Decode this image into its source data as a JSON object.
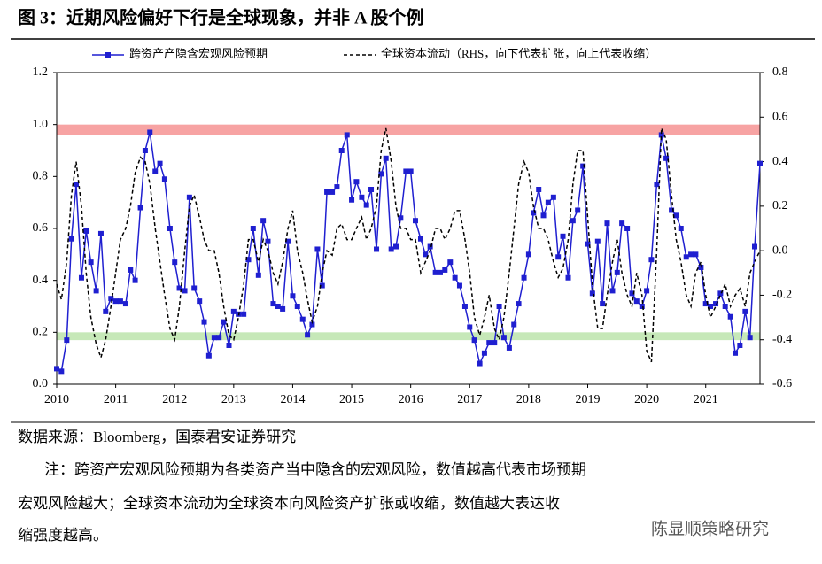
{
  "chart_data": {
    "type": "line",
    "title": "图 3：近期风险偏好下行是全球现象，并非 A 股个例",
    "source": "数据来源：Bloomberg，国泰君安证券研究",
    "notes": [
      "注：跨资产宏观风险预期为各类资产当中隐含的宏观风险，数值越高代表市场预期",
      "宏观风险越大；全球资本流动为全球资本向风险资产扩张或收缩，数值越大表达收",
      "缩强度越高。"
    ],
    "watermark": "陈显顺策略研究",
    "x": [
      2010,
      2010.08,
      2010.17,
      2010.25,
      2010.33,
      2010.42,
      2010.5,
      2010.58,
      2010.67,
      2010.75,
      2010.83,
      2010.92,
      2011,
      2011.08,
      2011.17,
      2011.25,
      2011.33,
      2011.42,
      2011.5,
      2011.58,
      2011.67,
      2011.75,
      2011.83,
      2011.92,
      2012,
      2012.08,
      2012.17,
      2012.25,
      2012.33,
      2012.42,
      2012.5,
      2012.58,
      2012.67,
      2012.75,
      2012.83,
      2012.92,
      2013,
      2013.08,
      2013.17,
      2013.25,
      2013.33,
      2013.42,
      2013.5,
      2013.58,
      2013.67,
      2013.75,
      2013.83,
      2013.92,
      2014,
      2014.08,
      2014.17,
      2014.25,
      2014.33,
      2014.42,
      2014.5,
      2014.58,
      2014.67,
      2014.75,
      2014.83,
      2014.92,
      2015,
      2015.08,
      2015.17,
      2015.25,
      2015.33,
      2015.42,
      2015.5,
      2015.58,
      2015.67,
      2015.75,
      2015.83,
      2015.92,
      2016,
      2016.08,
      2016.17,
      2016.25,
      2016.33,
      2016.42,
      2016.5,
      2016.58,
      2016.67,
      2016.75,
      2016.83,
      2016.92,
      2017,
      2017.08,
      2017.17,
      2017.25,
      2017.33,
      2017.42,
      2017.5,
      2017.58,
      2017.67,
      2017.75,
      2017.83,
      2017.92,
      2018,
      2018.08,
      2018.17,
      2018.25,
      2018.33,
      2018.42,
      2018.5,
      2018.58,
      2018.67,
      2018.75,
      2018.83,
      2018.92,
      2019,
      2019.08,
      2019.17,
      2019.25,
      2019.33,
      2019.42,
      2019.5,
      2019.58,
      2019.67,
      2019.75,
      2019.83,
      2019.92,
      2020,
      2020.08,
      2020.17,
      2020.25,
      2020.33,
      2020.42,
      2020.5,
      2020.58,
      2020.67,
      2020.75,
      2020.83,
      2020.92,
      2021,
      2021.08,
      2021.17,
      2021.25,
      2021.33,
      2021.42,
      2021.5,
      2021.58,
      2021.67,
      2021.75,
      2021.83,
      2021.92
    ],
    "series": [
      {
        "name": "跨资产产隐含宏观风险预期",
        "color": "#1f1fd0",
        "values": [
          0.06,
          0.05,
          0.17,
          0.56,
          0.77,
          0.41,
          0.59,
          0.47,
          0.36,
          0.58,
          0.28,
          0.33,
          0.32,
          0.32,
          0.31,
          0.44,
          0.4,
          0.68,
          0.9,
          0.97,
          0.82,
          0.85,
          0.79,
          0.6,
          0.47,
          0.37,
          0.36,
          0.72,
          0.37,
          0.32,
          0.24,
          0.11,
          0.18,
          0.18,
          0.24,
          0.15,
          0.28,
          0.27,
          0.27,
          0.48,
          0.6,
          0.42,
          0.63,
          0.55,
          0.31,
          0.3,
          0.29,
          0.55,
          0.34,
          0.3,
          0.25,
          0.19,
          0.23,
          0.52,
          0.38,
          0.74,
          0.74,
          0.76,
          0.9,
          0.96,
          0.71,
          0.78,
          0.72,
          0.69,
          0.75,
          0.52,
          0.81,
          0.87,
          0.52,
          0.53,
          0.64,
          0.82,
          0.82,
          0.63,
          0.56,
          0.5,
          0.53,
          0.43,
          0.43,
          0.44,
          0.47,
          0.41,
          0.38,
          0.3,
          0.22,
          0.17,
          0.08,
          0.12,
          0.16,
          0.16,
          0.3,
          0.18,
          0.14,
          0.23,
          0.31,
          0.41,
          0.5,
          0.66,
          0.75,
          0.65,
          0.7,
          0.72,
          0.49,
          0.57,
          0.41,
          0.63,
          0.67,
          0.84,
          0.54,
          0.35,
          0.55,
          0.31,
          0.62,
          0.36,
          0.43,
          0.62,
          0.6,
          0.35,
          0.32,
          0.3,
          0.36,
          0.48,
          0.77,
          0.96,
          0.87,
          0.67,
          0.65,
          0.6,
          0.49,
          0.5,
          0.5,
          0.45,
          0.31,
          0.3,
          0.31,
          0.35,
          0.3,
          0.26,
          0.12,
          0.15,
          0.28,
          0.18,
          0.53,
          0.85
        ]
      },
      {
        "name": "全球资本流动（RHS，向下代表扩张，向上代表收缩）",
        "color": "#000000",
        "axis": "y2",
        "values": [
          -0.15,
          -0.22,
          -0.05,
          0.25,
          0.4,
          0.2,
          -0.1,
          -0.3,
          -0.42,
          -0.48,
          -0.4,
          -0.25,
          -0.1,
          0.05,
          0.1,
          0.2,
          0.35,
          0.42,
          0.4,
          0.3,
          0.1,
          -0.05,
          -0.2,
          -0.35,
          -0.4,
          -0.25,
          0.0,
          0.2,
          0.25,
          0.15,
          0.05,
          0.0,
          0.0,
          -0.1,
          -0.25,
          -0.38,
          -0.4,
          -0.3,
          -0.15,
          0.05,
          0.05,
          -0.05,
          0.05,
          0.0,
          -0.1,
          -0.15,
          -0.05,
          0.1,
          0.18,
          0.0,
          -0.1,
          -0.22,
          -0.32,
          -0.25,
          -0.1,
          0.0,
          -0.02,
          0.1,
          0.12,
          0.05,
          0.05,
          0.1,
          0.15,
          0.05,
          0.1,
          0.2,
          0.45,
          0.55,
          0.4,
          0.2,
          0.1,
          0.1,
          0.05,
          0.05,
          -0.1,
          -0.05,
          0.0,
          0.1,
          0.1,
          0.05,
          0.1,
          0.18,
          0.18,
          0.05,
          -0.1,
          -0.3,
          -0.38,
          -0.3,
          -0.2,
          -0.35,
          -0.4,
          -0.3,
          -0.1,
          0.1,
          0.3,
          0.4,
          0.35,
          0.2,
          0.1,
          0.1,
          0.05,
          -0.05,
          -0.12,
          -0.08,
          0.05,
          0.3,
          0.45,
          0.45,
          0.15,
          -0.15,
          -0.35,
          -0.35,
          -0.2,
          -0.05,
          0.05,
          -0.1,
          -0.2,
          -0.25,
          -0.1,
          -0.2,
          -0.45,
          -0.5,
          0.0,
          0.55,
          0.5,
          0.25,
          0.05,
          -0.05,
          -0.2,
          -0.25,
          -0.1,
          -0.05,
          -0.2,
          -0.3,
          -0.25,
          -0.2,
          -0.15,
          -0.25,
          -0.2,
          -0.17,
          -0.25,
          -0.1,
          -0.05,
          0.0
        ]
      }
    ],
    "xlim": [
      2010,
      2021.92
    ],
    "xticks": [
      2010,
      2011,
      2012,
      2013,
      2014,
      2015,
      2016,
      2017,
      2018,
      2019,
      2020,
      2021
    ],
    "ylim": [
      0,
      1.2
    ],
    "yticks": [
      {
        "value": 0,
        "label": "0.0"
      },
      0.2,
      0.4,
      0.6,
      0.8,
      {
        "value": 1,
        "label": "1.0"
      },
      1.2
    ],
    "y2lim": [
      -0.6,
      0.8
    ],
    "y2ticks": [
      -0.6,
      -0.4,
      -0.2,
      {
        "value": 0,
        "label": "0.0"
      },
      0.2,
      0.4,
      0.6,
      0.8
    ],
    "bands": [
      {
        "range": [
          0.96,
          1.0
        ],
        "color": "#f7a3a3"
      },
      {
        "range": [
          0.17,
          0.2
        ],
        "color": "#c6e8b8"
      }
    ]
  }
}
